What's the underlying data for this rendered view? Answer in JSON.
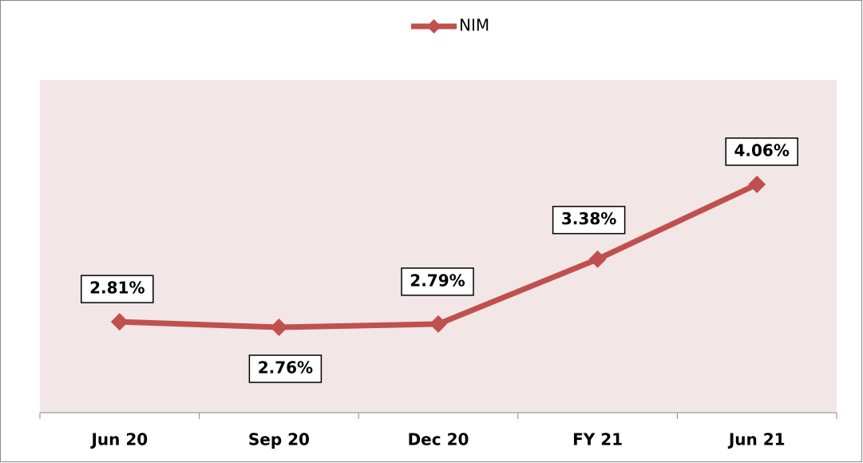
{
  "chart_data": {
    "type": "line",
    "categories": [
      "Jun 20",
      "Sep 20",
      "Dec 20",
      "FY 21",
      "Jun 21"
    ],
    "series": [
      {
        "name": "NIM",
        "color": "#c0504d",
        "values": [
          2.81,
          2.76,
          2.79,
          3.38,
          4.06
        ],
        "value_labels": [
          "2.81%",
          "2.76%",
          "2.79%",
          "3.38%",
          "4.06%"
        ]
      }
    ]
  }
}
